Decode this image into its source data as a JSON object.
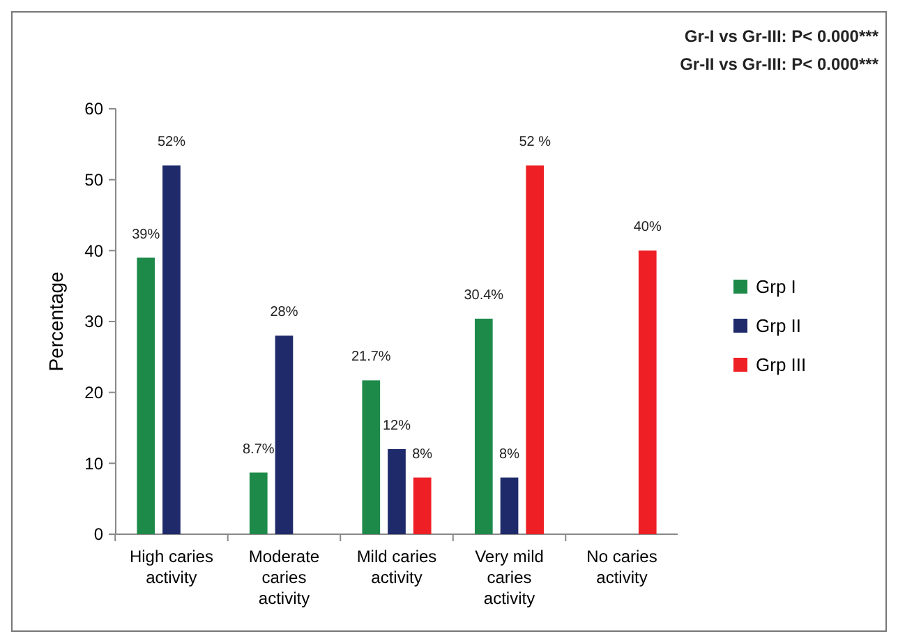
{
  "chart_data": {
    "type": "bar",
    "ylabel": "Percentage",
    "categories": [
      "High caries activity",
      "Moderate caries activity",
      "Mild caries activity",
      "Very mild caries activity",
      "No caries activity"
    ],
    "series": [
      {
        "name": "Grp I",
        "color": "#1e8a4a",
        "values": [
          39,
          8.7,
          21.7,
          30.4,
          null
        ],
        "value_labels": [
          "39%",
          "8.7%",
          "21.7%",
          "30.4%",
          null
        ]
      },
      {
        "name": "Grp II",
        "color": "#1f2a6b",
        "values": [
          52,
          28,
          12,
          8,
          null
        ],
        "value_labels": [
          "52%",
          "28%",
          "12%",
          "8%",
          null
        ]
      },
      {
        "name": "Grp III",
        "color": "#ee2026",
        "values": [
          null,
          null,
          8,
          52,
          40
        ],
        "value_labels": [
          null,
          null,
          "8%",
          "52 %",
          "40%"
        ]
      }
    ],
    "ylim": [
      0,
      60
    ],
    "yticks": [
      0,
      10,
      20,
      30,
      40,
      50,
      60
    ],
    "legend": "right",
    "annotations": [
      "Gr-I vs Gr-III:  P< 0.000***",
      "Gr-II vs Gr-III: P< 0.000***"
    ]
  }
}
